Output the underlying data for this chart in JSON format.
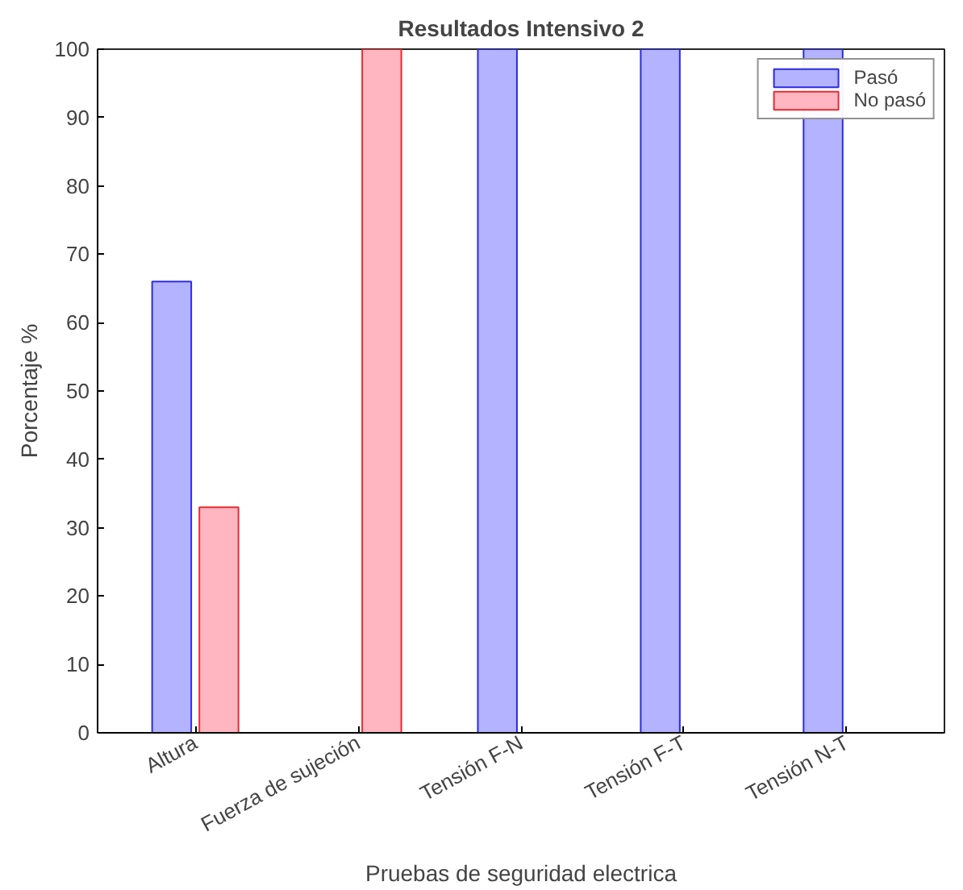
{
  "chart_data": {
    "type": "bar",
    "title": "Resultados Intensivo 2",
    "xlabel": "Pruebas de seguridad electrica",
    "ylabel": "Porcentaje %",
    "categories": [
      "Altura",
      "Fuerza de sujeción",
      "Tensión F-N",
      "Tensión F-T",
      "Tensión N-T"
    ],
    "series": [
      {
        "name": "Pasó",
        "color": "#b3b3ff",
        "values": [
          66,
          0,
          100,
          100,
          100
        ]
      },
      {
        "name": "No pasó",
        "color": "#ffb6c1",
        "values": [
          33,
          100,
          0,
          0,
          0
        ]
      }
    ],
    "ylim": [
      0,
      100
    ],
    "yticks": [
      0,
      10,
      20,
      30,
      40,
      50,
      60,
      70,
      80,
      90,
      100
    ],
    "grid": false,
    "legend": "top right"
  }
}
